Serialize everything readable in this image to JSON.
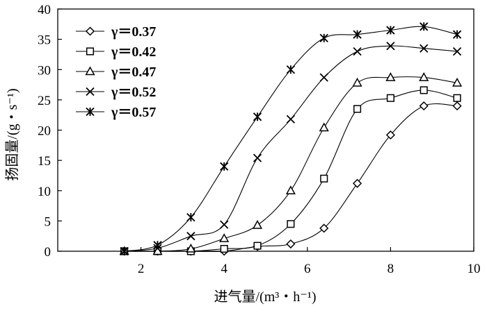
{
  "chart_data": {
    "type": "line",
    "xlabel": "进气量/(m³・h⁻¹)",
    "ylabel": "扬固量/(g・s⁻¹)",
    "xlim": [
      0,
      10
    ],
    "ylim": [
      0,
      40
    ],
    "xticks": [
      2,
      4,
      6,
      8,
      10
    ],
    "yticks": [
      0,
      5,
      10,
      15,
      20,
      25,
      30,
      35,
      40
    ],
    "grid": false,
    "legend_position": "top-left",
    "x": [
      1.6,
      2.4,
      3.2,
      4.0,
      4.8,
      5.6,
      6.4,
      7.2,
      8.0,
      8.8,
      9.6
    ],
    "series": [
      {
        "name": "γ＝0.37",
        "marker": "diamond",
        "values": [
          0,
          0,
          0,
          0,
          0.8,
          1.2,
          3.8,
          11.2,
          19.2,
          24.0,
          24.0
        ]
      },
      {
        "name": "γ＝0.42",
        "marker": "square",
        "values": [
          0,
          0,
          0,
          0.4,
          0.9,
          4.5,
          12.0,
          23.5,
          25.3,
          26.6,
          25.3
        ]
      },
      {
        "name": "γ＝0.47",
        "marker": "triangle",
        "values": [
          0,
          0,
          0.4,
          2.1,
          4.3,
          10.0,
          20.4,
          27.8,
          28.7,
          28.7,
          27.8
        ]
      },
      {
        "name": "γ＝0.52",
        "marker": "x",
        "values": [
          0,
          0.5,
          2.5,
          4.4,
          15.4,
          21.8,
          28.7,
          33.0,
          33.9,
          33.5,
          33.0
        ]
      },
      {
        "name": "γ＝0.57",
        "marker": "star",
        "values": [
          0,
          1.0,
          5.6,
          14.0,
          22.2,
          30.0,
          35.2,
          35.8,
          36.5,
          37.1,
          35.8
        ]
      }
    ]
  }
}
